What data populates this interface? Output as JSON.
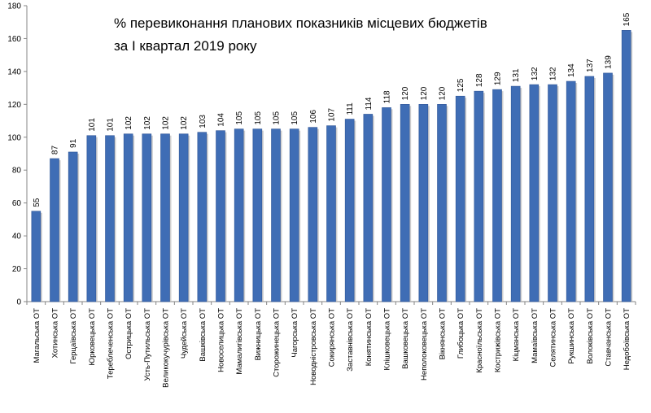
{
  "chart_data": {
    "type": "bar",
    "title_lines": [
      "% перевиконання  планових показників місцевих бюджетів",
      "за І квартал 2019 року"
    ],
    "xlabel": "",
    "ylabel": "",
    "ylim": [
      0,
      180
    ],
    "yticks": [
      0,
      20,
      40,
      60,
      80,
      100,
      120,
      140,
      160,
      180
    ],
    "grid": false,
    "legend": "none",
    "bar_color": "#3f6db5",
    "categories": [
      "Магальська ОТ",
      "Хотинська ОТ",
      "Герцаївська ОТ",
      "Юрковецька ОТ",
      "Тереблеченська ОТ",
      "Острицька ОТ",
      "Усть-Путильська ОТ",
      "Великокучурівська ОТ",
      "Чудейська ОТ",
      "Вашківська ОТ",
      "Новоселицька ОТ",
      "Мамалигівська ОТ",
      "Вижницька ОТ",
      "Сторожинецька ОТ",
      "Чагорська ОТ",
      "Новодністровська ОТ",
      "Сокирянська ОТ",
      "Заставнівська ОТ",
      "Конятинська ОТ",
      "Клішковецька ОТ",
      "Вашковецька ОТ",
      "Неполоковецька ОТ",
      "Вікнянська ОТ",
      "Глибоцька ОТ",
      "Красноїльська ОТ",
      "Кострижівська ОТ",
      "Кіцманська ОТ",
      "Мамаївська ОТ",
      "Селятинська ОТ",
      "Рукшинська ОТ",
      "Волоківська ОТ",
      "Ставчанська ОТ",
      "Недобоївська ОТ"
    ],
    "values": [
      55,
      87,
      91,
      101,
      101,
      102,
      102,
      102,
      102,
      103,
      104,
      105,
      105,
      105,
      105,
      106,
      107,
      111,
      114,
      118,
      120,
      120,
      120,
      125,
      128,
      129,
      131,
      132,
      132,
      134,
      137,
      139,
      165
    ]
  }
}
